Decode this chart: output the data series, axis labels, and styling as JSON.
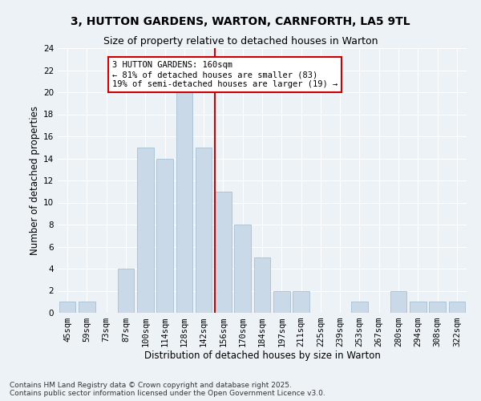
{
  "title1": "3, HUTTON GARDENS, WARTON, CARNFORTH, LA5 9TL",
  "title2": "Size of property relative to detached houses in Warton",
  "xlabel": "Distribution of detached houses by size in Warton",
  "ylabel": "Number of detached properties",
  "categories": [
    "45sqm",
    "59sqm",
    "73sqm",
    "87sqm",
    "100sqm",
    "114sqm",
    "128sqm",
    "142sqm",
    "156sqm",
    "170sqm",
    "184sqm",
    "197sqm",
    "211sqm",
    "225sqm",
    "239sqm",
    "253sqm",
    "267sqm",
    "280sqm",
    "294sqm",
    "308sqm",
    "322sqm"
  ],
  "values": [
    1,
    1,
    0,
    4,
    15,
    14,
    20,
    15,
    11,
    8,
    5,
    2,
    2,
    0,
    0,
    1,
    0,
    2,
    1,
    1,
    1
  ],
  "bar_color": "#c9d9e8",
  "bar_edge_color": "#9ab8cc",
  "vline_pos": 8.0,
  "vline_color": "#cc0000",
  "annotation_title": "3 HUTTON GARDENS: 160sqm",
  "annotation_line1": "← 81% of detached houses are smaller (83)",
  "annotation_line2": "19% of semi-detached houses are larger (19) →",
  "annotation_box_color": "#cc0000",
  "ylim": [
    0,
    24
  ],
  "yticks": [
    0,
    2,
    4,
    6,
    8,
    10,
    12,
    14,
    16,
    18,
    20,
    22,
    24
  ],
  "footer": "Contains HM Land Registry data © Crown copyright and database right 2025.\nContains public sector information licensed under the Open Government Licence v3.0.",
  "background_color": "#edf2f7",
  "grid_color": "#ffffff",
  "title_fontsize": 10,
  "subtitle_fontsize": 9,
  "axis_label_fontsize": 8.5,
  "tick_fontsize": 7.5,
  "annotation_fontsize": 7.5,
  "footer_fontsize": 6.5
}
